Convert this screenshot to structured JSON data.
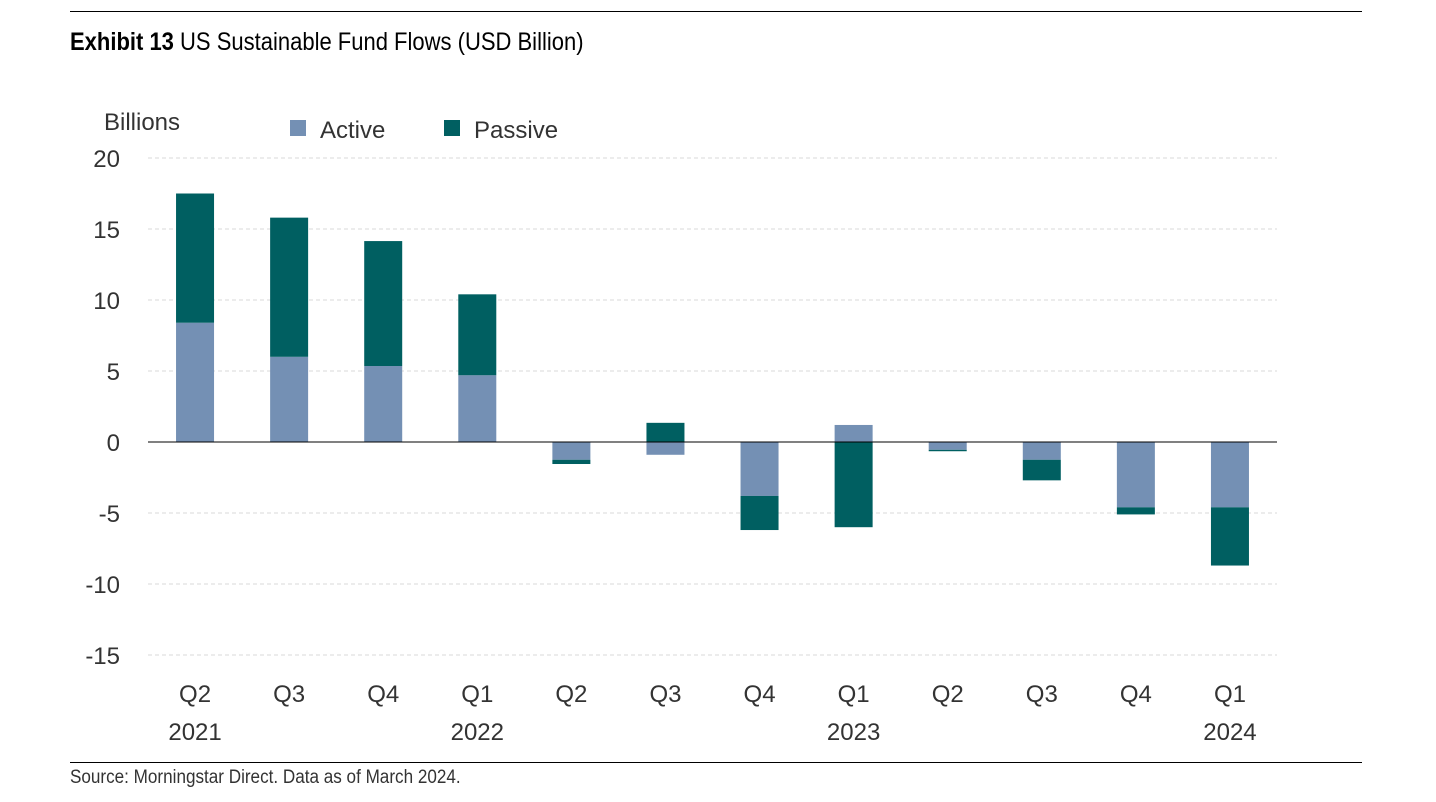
{
  "title": {
    "label": "Exhibit 13",
    "text": "US Sustainable Fund Flows (USD Billion)"
  },
  "source": "Source: Morningstar Direct. Data as of March 2024.",
  "chart_data": {
    "type": "bar",
    "stacked": true,
    "ylabel": "Billions",
    "ylim": [
      -15,
      20
    ],
    "yticks": [
      20,
      15,
      10,
      5,
      0,
      -5,
      -10,
      -15
    ],
    "grid": true,
    "legend_position": "top-left",
    "categories": [
      "Q2 2021",
      "Q3 2021",
      "Q4 2021",
      "Q1 2022",
      "Q2 2022",
      "Q3 2022",
      "Q4 2022",
      "Q1 2023",
      "Q2 2023",
      "Q3 2023",
      "Q4 2023",
      "Q1 2024"
    ],
    "tick_labels": [
      [
        "Q2",
        "2021"
      ],
      [
        "Q3",
        ""
      ],
      [
        "Q4",
        ""
      ],
      [
        "Q1",
        "2022"
      ],
      [
        "Q2",
        ""
      ],
      [
        "Q3",
        ""
      ],
      [
        "Q4",
        ""
      ],
      [
        "Q1",
        "2023"
      ],
      [
        "Q2",
        ""
      ],
      [
        "Q3",
        ""
      ],
      [
        "Q4",
        ""
      ],
      [
        "Q1",
        "2024"
      ]
    ],
    "series": [
      {
        "name": "Active",
        "color": "#7490b4",
        "values": [
          8.4,
          6.0,
          5.35,
          4.7,
          -1.25,
          -0.9,
          -3.8,
          1.2,
          -0.55,
          -1.25,
          -4.6,
          -4.6
        ]
      },
      {
        "name": "Passive",
        "color": "#005f61",
        "values": [
          9.1,
          9.8,
          8.8,
          5.7,
          -0.3,
          1.35,
          -2.4,
          -6.0,
          -0.1,
          -1.45,
          -0.5,
          -4.1
        ]
      }
    ]
  }
}
